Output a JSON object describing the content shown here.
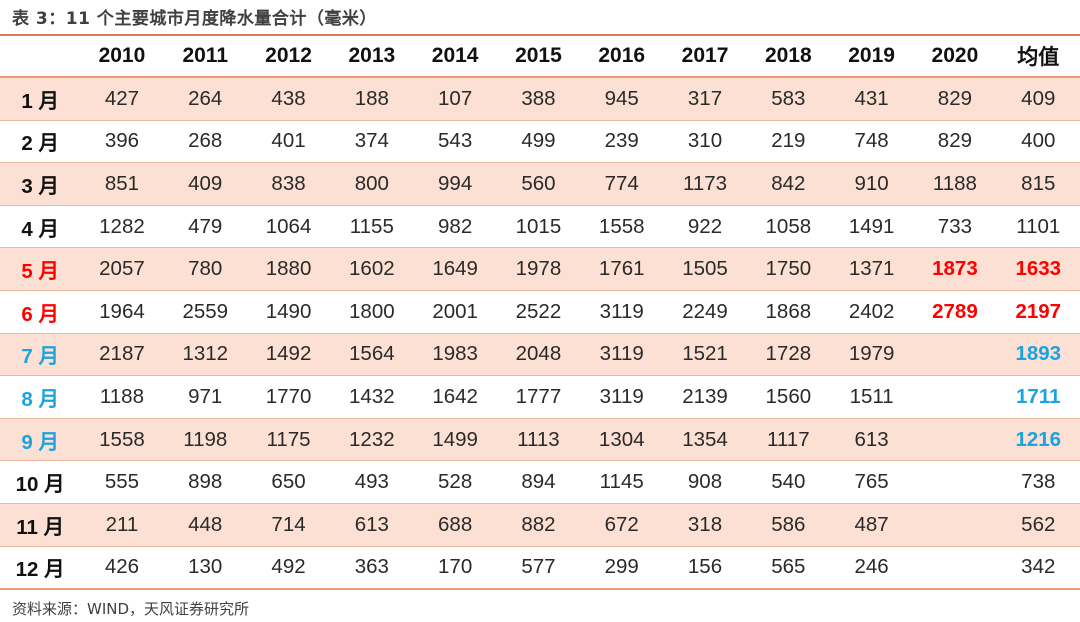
{
  "title": "表 3：11 个主要城市月度降水量合计（毫米）",
  "footer": "资料来源：WIND，天风证券研究所",
  "colors": {
    "rule": "#e07a5f",
    "row_band": "#fbe0d3",
    "red": "#ff0000",
    "blue": "#1aa3e0"
  },
  "table": {
    "headers": [
      "",
      "2010",
      "2011",
      "2012",
      "2013",
      "2014",
      "2015",
      "2016",
      "2017",
      "2018",
      "2019",
      "2020",
      "均值"
    ],
    "rows": [
      {
        "month": "1 月",
        "style": "",
        "values": [
          "427",
          "264",
          "438",
          "188",
          "107",
          "388",
          "945",
          "317",
          "583",
          "431",
          "829",
          "409"
        ]
      },
      {
        "month": "2 月",
        "style": "",
        "values": [
          "396",
          "268",
          "401",
          "374",
          "543",
          "499",
          "239",
          "310",
          "219",
          "748",
          "829",
          "400"
        ]
      },
      {
        "month": "3 月",
        "style": "",
        "values": [
          "851",
          "409",
          "838",
          "800",
          "994",
          "560",
          "774",
          "1173",
          "842",
          "910",
          "1188",
          "815"
        ]
      },
      {
        "month": "4 月",
        "style": "",
        "values": [
          "1282",
          "479",
          "1064",
          "1155",
          "982",
          "1015",
          "1558",
          "922",
          "1058",
          "1491",
          "733",
          "1101"
        ]
      },
      {
        "month": "5 月",
        "style": "red",
        "values": [
          "2057",
          "780",
          "1880",
          "1602",
          "1649",
          "1978",
          "1761",
          "1505",
          "1750",
          "1371",
          "1873",
          "1633"
        ]
      },
      {
        "month": "6 月",
        "style": "red",
        "values": [
          "1964",
          "2559",
          "1490",
          "1800",
          "2001",
          "2522",
          "3119",
          "2249",
          "1868",
          "2402",
          "2789",
          "2197"
        ]
      },
      {
        "month": "7 月",
        "style": "blue",
        "values": [
          "2187",
          "1312",
          "1492",
          "1564",
          "1983",
          "2048",
          "3119",
          "1521",
          "1728",
          "1979",
          "",
          "1893"
        ]
      },
      {
        "month": "8 月",
        "style": "blue",
        "values": [
          "1188",
          "971",
          "1770",
          "1432",
          "1642",
          "1777",
          "3119",
          "2139",
          "1560",
          "1511",
          "",
          "1711"
        ]
      },
      {
        "month": "9 月",
        "style": "blue",
        "values": [
          "1558",
          "1198",
          "1175",
          "1232",
          "1499",
          "1113",
          "1304",
          "1354",
          "1117",
          "613",
          "",
          "1216"
        ]
      },
      {
        "month": "10 月",
        "style": "",
        "values": [
          "555",
          "898",
          "650",
          "493",
          "528",
          "894",
          "1145",
          "908",
          "540",
          "765",
          "",
          "738"
        ]
      },
      {
        "month": "11 月",
        "style": "",
        "values": [
          "211",
          "448",
          "714",
          "613",
          "688",
          "882",
          "672",
          "318",
          "586",
          "487",
          "",
          "562"
        ]
      },
      {
        "month": "12 月",
        "style": "",
        "values": [
          "426",
          "130",
          "492",
          "363",
          "170",
          "577",
          "299",
          "156",
          "565",
          "246",
          "",
          "342"
        ]
      }
    ]
  }
}
